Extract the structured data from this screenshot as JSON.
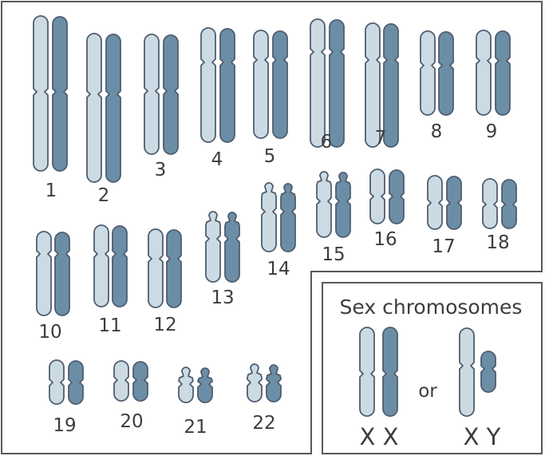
{
  "colors": {
    "light_chromatid": "#ccdbe3",
    "dark_chromatid": "#6b8ea6",
    "outline": "#4f5d6f",
    "frame": "#595959",
    "text": "#3d3d3d"
  },
  "chromosomes": [
    {
      "label": "1",
      "shape": "long"
    },
    {
      "label": "2",
      "shape": "long"
    },
    {
      "label": "3",
      "shape": "long"
    },
    {
      "label": "4",
      "shape": "long"
    },
    {
      "label": "5",
      "shape": "long"
    },
    {
      "label": "6",
      "shape": "long"
    },
    {
      "label": "7",
      "shape": "long"
    },
    {
      "label": "8",
      "shape": "long"
    },
    {
      "label": "9",
      "shape": "long"
    },
    {
      "label": "10",
      "shape": "long"
    },
    {
      "label": "11",
      "shape": "long"
    },
    {
      "label": "12",
      "shape": "long"
    },
    {
      "label": "13",
      "shape": "satellite"
    },
    {
      "label": "14",
      "shape": "satellite"
    },
    {
      "label": "15",
      "shape": "satellite"
    },
    {
      "label": "16",
      "shape": "long"
    },
    {
      "label": "17",
      "shape": "long"
    },
    {
      "label": "18",
      "shape": "long"
    },
    {
      "label": "19",
      "shape": "long"
    },
    {
      "label": "20",
      "shape": "long"
    },
    {
      "label": "21",
      "shape": "satellite"
    },
    {
      "label": "22",
      "shape": "satellite"
    }
  ],
  "sex_chromosomes": {
    "title": "Sex chromosomes",
    "or_text": "or",
    "female_label": "X X",
    "male_label": "X Y"
  }
}
